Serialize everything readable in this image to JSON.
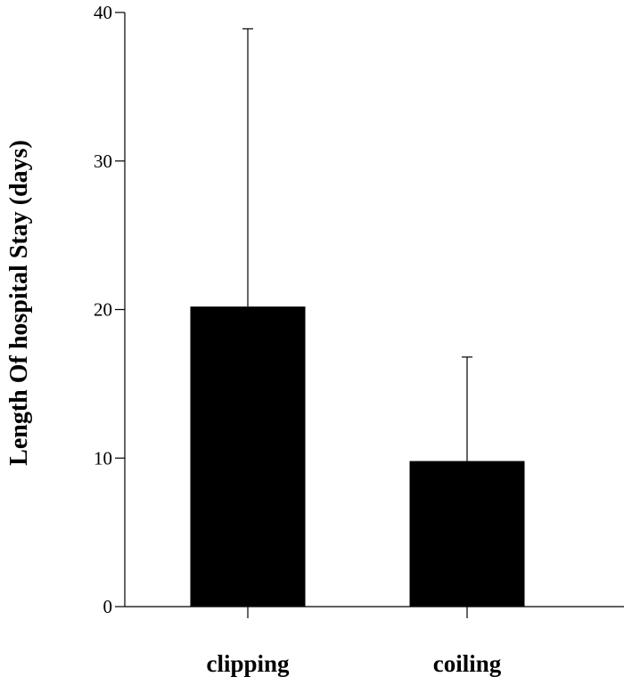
{
  "chart_data": {
    "type": "bar",
    "title": "",
    "xlabel": "",
    "ylabel": "Length Of hospital Stay (days)",
    "categories": [
      "clipping",
      "coiling"
    ],
    "values": [
      20.2,
      9.8
    ],
    "error_upper": [
      38.9,
      16.8
    ],
    "ylim": [
      0,
      40
    ],
    "yticks": [
      "0",
      "10",
      "20",
      "30",
      "40"
    ],
    "grid": false,
    "legend": "none",
    "bar_color": "#000000"
  }
}
